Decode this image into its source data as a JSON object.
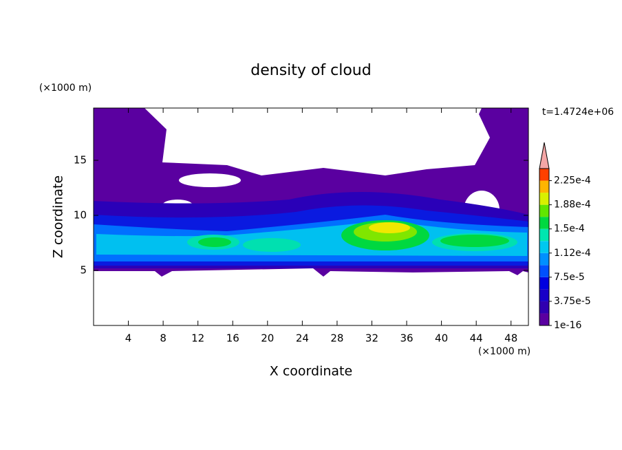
{
  "chart_data": {
    "type": "contour",
    "title": "density of cloud",
    "xlabel": "X coordinate",
    "ylabel": "Z coordinate",
    "xunit": "(×1000 m)",
    "yunit": "(×1000 m)",
    "time_label": "t=1.4724e+06",
    "xlim": [
      0,
      50
    ],
    "xticks": [
      4,
      8,
      12,
      16,
      20,
      24,
      28,
      32,
      36,
      40,
      44,
      48
    ],
    "ylim": [
      0,
      19.75
    ],
    "yticks": [
      5,
      10,
      15
    ],
    "colorbar": {
      "levels": [
        1e-16,
        1.875e-05,
        3.75e-05,
        5.625e-05,
        7.5e-05,
        9.375e-05,
        0.0001125,
        0.00013125,
        0.00015,
        0.00016875,
        0.0001875,
        0.00020625,
        0.000225,
        0.00024375
      ],
      "colors": [
        "#5a00a0",
        "#3000b0",
        "#1800c8",
        "#0000e0",
        "#0050ff",
        "#0090ff",
        "#00c8f0",
        "#00e6b0",
        "#00d840",
        "#60e600",
        "#d8f000",
        "#ffb400",
        "#ff4000"
      ],
      "extend_color": "#f4a6a6",
      "ticks": [
        {
          "value": 1e-16,
          "label": "1e-16"
        },
        {
          "value": 3.75e-05,
          "label": "3.75e-5"
        },
        {
          "value": 7.5e-05,
          "label": "7.5e-5"
        },
        {
          "value": 0.0001125,
          "label": "1.12e-4"
        },
        {
          "value": 0.00015,
          "label": "1.5e-4"
        },
        {
          "value": 0.0001875,
          "label": "1.88e-4"
        },
        {
          "value": 0.000225,
          "label": "2.25e-4"
        }
      ]
    }
  }
}
